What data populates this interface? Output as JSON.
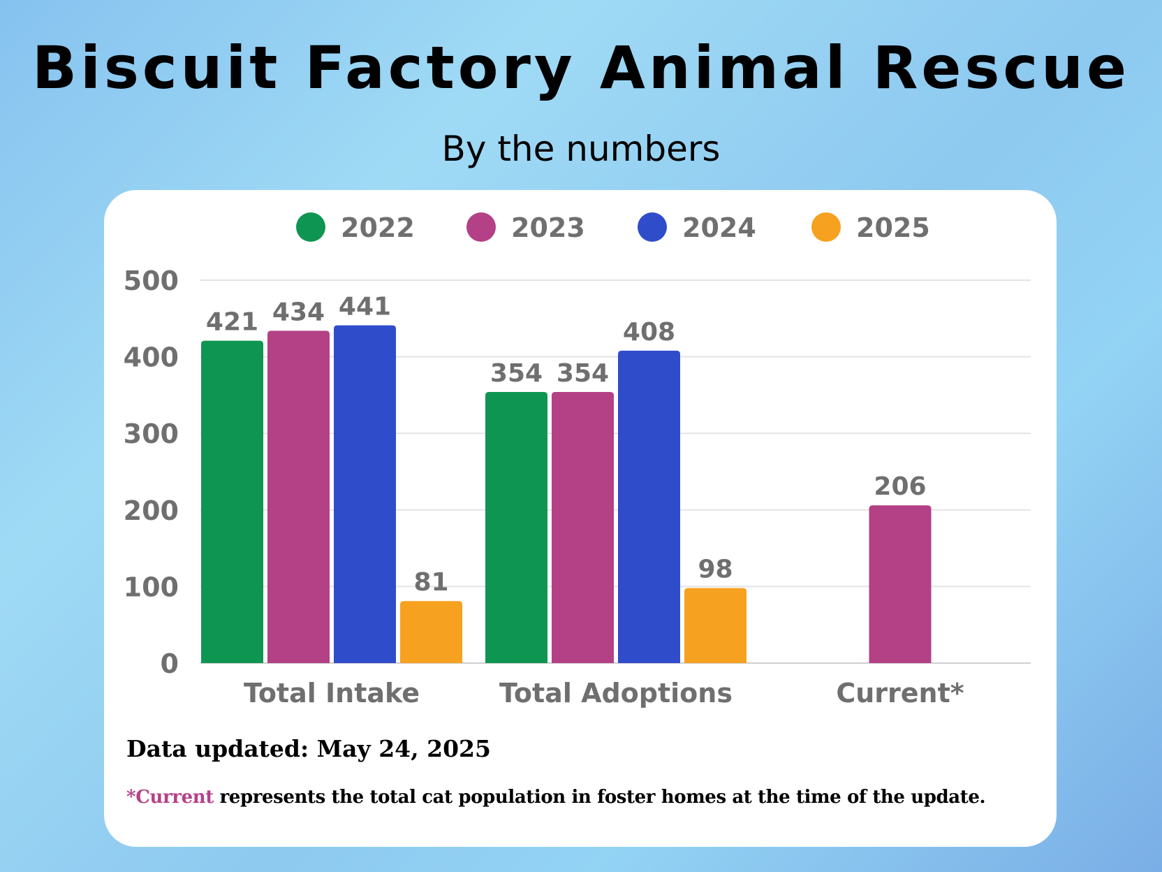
{
  "header": {
    "title": "Biscuit Factory Animal Rescue",
    "subtitle": "By the numbers"
  },
  "colors": {
    "2022": "#0f9552",
    "2023": "#b44086",
    "2024": "#2f4ccb",
    "2025": "#f6a11f",
    "text_gray": "#6f6f6f",
    "accent": "#b6408a"
  },
  "chart_data": {
    "type": "bar",
    "title": "Biscuit Factory Animal Rescue",
    "subtitle": "By the numbers",
    "xlabel": "",
    "ylabel": "",
    "ylim": [
      0,
      500
    ],
    "yticks": [
      0,
      100,
      200,
      300,
      400,
      500
    ],
    "grid": true,
    "legend_position": "top-center",
    "categories": [
      "Total Intake",
      "Total Adoptions",
      "Current*"
    ],
    "series": [
      {
        "name": "2022",
        "values": [
          421,
          354,
          null
        ]
      },
      {
        "name": "2023",
        "values": [
          434,
          354,
          206
        ]
      },
      {
        "name": "2024",
        "values": [
          441,
          408,
          null
        ]
      },
      {
        "name": "2025",
        "values": [
          81,
          98,
          null
        ]
      }
    ],
    "data_labels": true
  },
  "notes": {
    "updated_label": "Data updated:",
    "updated_value": "May 24, 2025",
    "footnote_marker": "*Current",
    "footnote_text": " represents the total cat population in foster homes at the time of the update."
  }
}
